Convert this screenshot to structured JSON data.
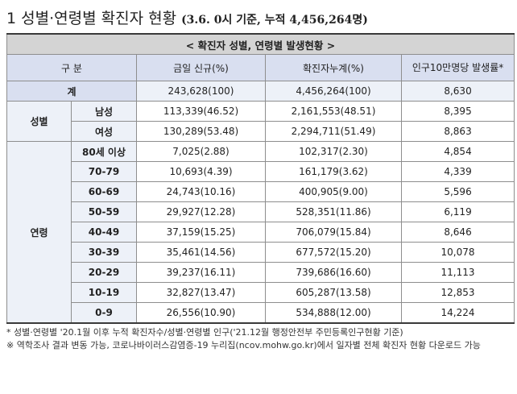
{
  "title": {
    "lead": "1 성별·연령별 확진자 현황",
    "paren": "(3.6. 0시 기준, 누적 4,456,264명)"
  },
  "table": {
    "caption": "< 확진자 성별, 연령별 발생현황 >",
    "headers": {
      "category": "구 분",
      "new": "금일 신규(%)",
      "cumulative": "확진자누계(%)",
      "rate": "인구10만명당 발생률*"
    },
    "total": {
      "label": "계",
      "new": "243,628(100)",
      "cumulative": "4,456,264(100)",
      "rate": "8,630"
    },
    "gender": {
      "group_label": "성별",
      "rows": [
        {
          "label": "남성",
          "new": "113,339(46.52)",
          "cumulative": "2,161,553(48.51)",
          "rate": "8,395"
        },
        {
          "label": "여성",
          "new": "130,289(53.48)",
          "cumulative": "2,294,711(51.49)",
          "rate": "8,863"
        }
      ]
    },
    "age": {
      "group_label": "연령",
      "rows": [
        {
          "label": "80세 이상",
          "new": "7,025(2.88)",
          "cumulative": "102,317(2.30)",
          "rate": "4,854"
        },
        {
          "label": "70-79",
          "new": "10,693(4.39)",
          "cumulative": "161,179(3.62)",
          "rate": "4,339"
        },
        {
          "label": "60-69",
          "new": "24,743(10.16)",
          "cumulative": "400,905(9.00)",
          "rate": "5,596"
        },
        {
          "label": "50-59",
          "new": "29,927(12.28)",
          "cumulative": "528,351(11.86)",
          "rate": "6,119"
        },
        {
          "label": "40-49",
          "new": "37,159(15.25)",
          "cumulative": "706,079(15.84)",
          "rate": "8,646"
        },
        {
          "label": "30-39",
          "new": "35,461(14.56)",
          "cumulative": "677,572(15.20)",
          "rate": "10,078"
        },
        {
          "label": "20-29",
          "new": "39,237(16.11)",
          "cumulative": "739,686(16.60)",
          "rate": "11,113"
        },
        {
          "label": "10-19",
          "new": "32,827(13.47)",
          "cumulative": "605,287(13.58)",
          "rate": "12,853"
        },
        {
          "label": "0-9",
          "new": "26,556(10.90)",
          "cumulative": "534,888(12.00)",
          "rate": "14,224"
        }
      ]
    }
  },
  "notes": [
    "* 성별·연령별 '20.1월 이후 누적 확진자수/성별·연령별 인구('21.12월 행정안전부 주민등록인구현황 기준)",
    "※ 역학조사 결과 변동 가능, 코로나바이러스감염증-19 누리집(ncov.mohw.go.kr)에서 일자별 전체 확진자 현황 다운로드 가능"
  ]
}
